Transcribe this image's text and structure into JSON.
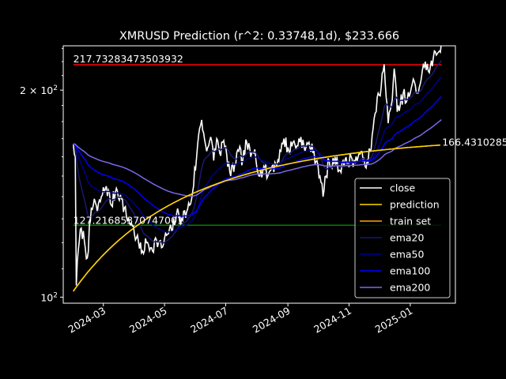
{
  "chart_data": {
    "type": "line",
    "title": "XMRUSD Prediction (r^2: 0.33748,1d), $233.666",
    "xlabel": "",
    "ylabel": "",
    "y_scale": "log",
    "ylim": [
      98,
      232
    ],
    "xlim": [
      "2024-01-21",
      "2025-02-15"
    ],
    "x_ticks": [
      "2024-03",
      "2024-05",
      "2024-07",
      "2024-09",
      "2024-11",
      "2025-01"
    ],
    "x_tick_dates": [
      "2024-03-01",
      "2024-05-01",
      "2024-07-01",
      "2024-09-01",
      "2024-11-01",
      "2025-01-01"
    ],
    "y_ticks": [
      {
        "value": 100,
        "base": "10",
        "exp": "2",
        "mult": ""
      },
      {
        "value": 200,
        "base": "10",
        "exp": "2",
        "mult": "2 × "
      }
    ],
    "grid": false,
    "legend_position": "lower right",
    "annotations": {
      "upper_level": "217.73283473503932",
      "lower_level": "127.21685370747001",
      "end_prediction": "166.43102857"
    },
    "levels": [
      {
        "name": "upper",
        "value": 217.73,
        "color": "#ff0000"
      },
      {
        "name": "lower",
        "value": 127.22,
        "color": "#008000"
      }
    ],
    "close_keypoints": [
      [
        "2024-01-31",
        167
      ],
      [
        "2024-02-02",
        160
      ],
      [
        "2024-02-03",
        104
      ],
      [
        "2024-02-05",
        117
      ],
      [
        "2024-02-08",
        126
      ],
      [
        "2024-02-11",
        121
      ],
      [
        "2024-02-14",
        114
      ],
      [
        "2024-02-17",
        129
      ],
      [
        "2024-02-21",
        139
      ],
      [
        "2024-02-24",
        133
      ],
      [
        "2024-02-28",
        140
      ],
      [
        "2024-03-04",
        145
      ],
      [
        "2024-03-09",
        136
      ],
      [
        "2024-03-14",
        144
      ],
      [
        "2024-03-19",
        139
      ],
      [
        "2024-03-24",
        131
      ],
      [
        "2024-03-29",
        128
      ],
      [
        "2024-04-03",
        122
      ],
      [
        "2024-04-08",
        116
      ],
      [
        "2024-04-13",
        120
      ],
      [
        "2024-04-18",
        118
      ],
      [
        "2024-04-23",
        121
      ],
      [
        "2024-04-28",
        118
      ],
      [
        "2024-05-03",
        123
      ],
      [
        "2024-05-08",
        125
      ],
      [
        "2024-05-13",
        132
      ],
      [
        "2024-05-18",
        130
      ],
      [
        "2024-05-23",
        133
      ],
      [
        "2024-05-28",
        139
      ],
      [
        "2024-06-02",
        160
      ],
      [
        "2024-06-05",
        176
      ],
      [
        "2024-06-07",
        181
      ],
      [
        "2024-06-10",
        169
      ],
      [
        "2024-06-13",
        165
      ],
      [
        "2024-06-16",
        171
      ],
      [
        "2024-06-19",
        158
      ],
      [
        "2024-06-22",
        170
      ],
      [
        "2024-06-25",
        162
      ],
      [
        "2024-06-28",
        168
      ],
      [
        "2024-07-02",
        161
      ],
      [
        "2024-07-06",
        150
      ],
      [
        "2024-07-10",
        156
      ],
      [
        "2024-07-14",
        163
      ],
      [
        "2024-07-18",
        158
      ],
      [
        "2024-07-22",
        168
      ],
      [
        "2024-07-26",
        160
      ],
      [
        "2024-07-30",
        164
      ],
      [
        "2024-08-04",
        150
      ],
      [
        "2024-08-08",
        155
      ],
      [
        "2024-08-12",
        150
      ],
      [
        "2024-08-16",
        155
      ],
      [
        "2024-08-20",
        156
      ],
      [
        "2024-08-25",
        163
      ],
      [
        "2024-08-28",
        170
      ],
      [
        "2024-09-02",
        163
      ],
      [
        "2024-09-06",
        168
      ],
      [
        "2024-09-10",
        166
      ],
      [
        "2024-09-14",
        171
      ],
      [
        "2024-09-18",
        163
      ],
      [
        "2024-09-22",
        168
      ],
      [
        "2024-09-26",
        162
      ],
      [
        "2024-09-30",
        158
      ],
      [
        "2024-10-03",
        150
      ],
      [
        "2024-10-06",
        140
      ],
      [
        "2024-10-09",
        150
      ],
      [
        "2024-10-12",
        158
      ],
      [
        "2024-10-15",
        154
      ],
      [
        "2024-10-18",
        160
      ],
      [
        "2024-10-22",
        153
      ],
      [
        "2024-10-26",
        158
      ],
      [
        "2024-10-30",
        156
      ],
      [
        "2024-11-03",
        160
      ],
      [
        "2024-11-07",
        157
      ],
      [
        "2024-11-11",
        162
      ],
      [
        "2024-11-15",
        158
      ],
      [
        "2024-11-19",
        158
      ],
      [
        "2024-11-23",
        164
      ],
      [
        "2024-11-27",
        185
      ],
      [
        "2024-11-30",
        198
      ],
      [
        "2024-12-03",
        202
      ],
      [
        "2024-12-06",
        218
      ],
      [
        "2024-12-08",
        195
      ],
      [
        "2024-12-10",
        179
      ],
      [
        "2024-12-13",
        190
      ],
      [
        "2024-12-16",
        215
      ],
      [
        "2024-12-19",
        186
      ],
      [
        "2024-12-22",
        190
      ],
      [
        "2024-12-25",
        198
      ],
      [
        "2024-12-28",
        192
      ],
      [
        "2025-01-01",
        198
      ],
      [
        "2025-01-05",
        206
      ],
      [
        "2025-01-08",
        198
      ],
      [
        "2025-01-12",
        208
      ],
      [
        "2025-01-16",
        220
      ],
      [
        "2025-01-20",
        212
      ],
      [
        "2025-01-24",
        223
      ],
      [
        "2025-01-28",
        226
      ],
      [
        "2025-02-01",
        233.7
      ]
    ],
    "series": [
      {
        "name": "close",
        "color": "#ffffff",
        "key": "close"
      },
      {
        "name": "prediction",
        "color": "#ffd700",
        "key": "prediction"
      },
      {
        "name": "train set",
        "color": "#ffa500",
        "key": "train"
      },
      {
        "name": "ema20",
        "color": "#191970",
        "key": "ema20"
      },
      {
        "name": "ema50",
        "color": "#00008b",
        "key": "ema50"
      },
      {
        "name": "ema100",
        "color": "#0000ff",
        "key": "ema100"
      },
      {
        "name": "ema200",
        "color": "#7b68ee",
        "key": "ema200"
      }
    ],
    "prediction_model": {
      "start_date": "2024-01-31",
      "end_date": "2025-02-01",
      "start_value": 102,
      "end_value": 166.43
    }
  }
}
